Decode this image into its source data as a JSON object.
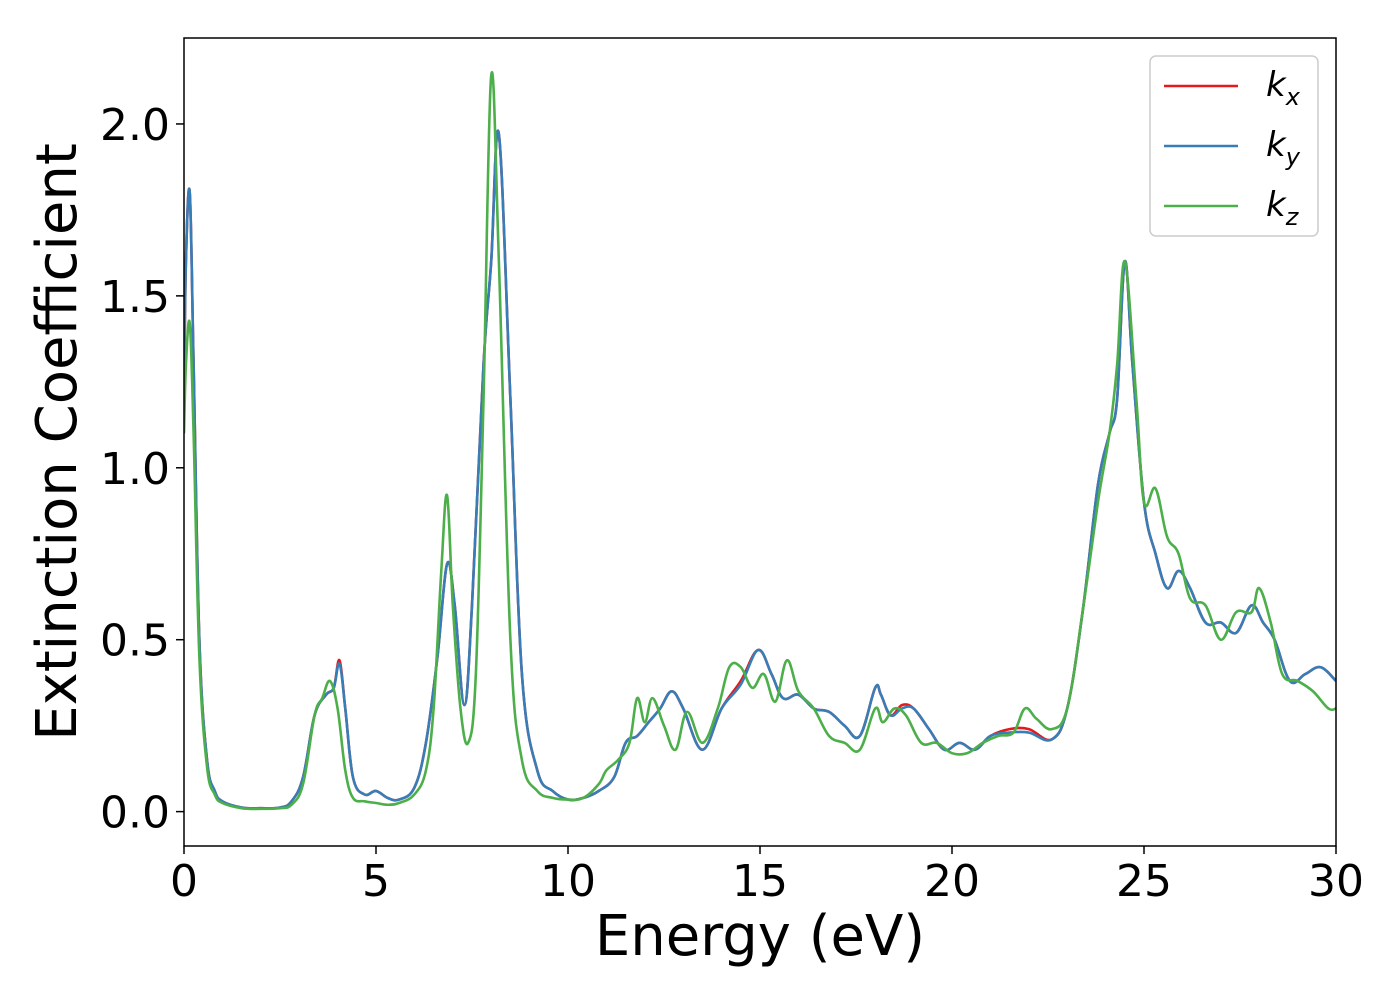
{
  "chart_data": {
    "type": "line",
    "title": "",
    "xlabel": "Energy (eV)",
    "ylabel": "Extinction Coefficient",
    "xlim": [
      0,
      30
    ],
    "ylim": [
      -0.1,
      2.25
    ],
    "xticks": [
      0,
      5,
      10,
      15,
      20,
      25,
      30
    ],
    "xtick_labels": [
      "0",
      "5",
      "10",
      "15",
      "20",
      "25",
      "30"
    ],
    "yticks": [
      0.0,
      0.5,
      1.0,
      1.5,
      2.0
    ],
    "ytick_labels": [
      "0.0",
      "0.5",
      "1.0",
      "1.5",
      "2.0"
    ],
    "grid": false,
    "legend_position": "top-right",
    "series": [
      {
        "name": "kx",
        "base": "k",
        "sub": "x",
        "color": "#e41a1c",
        "x": [
          0,
          0.05,
          0.15,
          0.25,
          0.4,
          0.6,
          0.8,
          1.0,
          1.5,
          2.0,
          2.5,
          2.8,
          3.1,
          3.4,
          3.7,
          3.9,
          4.05,
          4.2,
          4.4,
          4.7,
          5.0,
          5.3,
          5.6,
          6.0,
          6.3,
          6.6,
          6.85,
          7.05,
          7.3,
          7.5,
          7.8,
          8.0,
          8.2,
          8.5,
          8.8,
          9.2,
          9.6,
          10.0,
          10.4,
          10.8,
          11.2,
          11.5,
          11.8,
          12.1,
          12.4,
          12.7,
          13.0,
          13.5,
          14.0,
          14.5,
          14.95,
          15.3,
          15.6,
          16.0,
          16.4,
          16.8,
          17.2,
          17.6,
          18.0,
          18.15,
          18.4,
          18.7,
          19.0,
          19.4,
          19.8,
          20.2,
          20.6,
          21.0,
          21.5,
          22.0,
          22.6,
          23.0,
          23.4,
          23.8,
          24.1,
          24.3,
          24.5,
          24.7,
          25.0,
          25.3,
          25.6,
          25.9,
          26.2,
          26.6,
          27.0,
          27.4,
          27.8,
          28.1,
          28.4,
          28.8,
          29.2,
          29.6,
          30.0
        ],
        "y": [
          1.2,
          1.6,
          1.8,
          1.3,
          0.5,
          0.15,
          0.06,
          0.03,
          0.012,
          0.01,
          0.012,
          0.03,
          0.1,
          0.28,
          0.34,
          0.36,
          0.44,
          0.3,
          0.1,
          0.05,
          0.06,
          0.04,
          0.035,
          0.07,
          0.2,
          0.45,
          0.72,
          0.6,
          0.31,
          0.6,
          1.3,
          1.6,
          1.97,
          1.2,
          0.4,
          0.12,
          0.06,
          0.035,
          0.04,
          0.06,
          0.1,
          0.2,
          0.22,
          0.26,
          0.3,
          0.35,
          0.3,
          0.18,
          0.3,
          0.38,
          0.47,
          0.4,
          0.33,
          0.34,
          0.3,
          0.29,
          0.25,
          0.22,
          0.36,
          0.34,
          0.28,
          0.31,
          0.3,
          0.24,
          0.18,
          0.2,
          0.18,
          0.22,
          0.24,
          0.24,
          0.21,
          0.3,
          0.58,
          0.95,
          1.1,
          1.2,
          1.6,
          1.3,
          0.9,
          0.75,
          0.65,
          0.7,
          0.65,
          0.55,
          0.55,
          0.52,
          0.6,
          0.55,
          0.5,
          0.38,
          0.4,
          0.42,
          0.38
        ]
      },
      {
        "name": "ky",
        "base": "k",
        "sub": "y",
        "color": "#377eb8",
        "x": [
          0,
          0.05,
          0.15,
          0.25,
          0.4,
          0.6,
          0.8,
          1.0,
          1.5,
          2.0,
          2.5,
          2.8,
          3.1,
          3.4,
          3.7,
          3.9,
          4.05,
          4.2,
          4.4,
          4.7,
          5.0,
          5.3,
          5.6,
          6.0,
          6.3,
          6.6,
          6.85,
          7.05,
          7.3,
          7.5,
          7.8,
          8.0,
          8.2,
          8.5,
          8.8,
          9.2,
          9.6,
          10.0,
          10.4,
          10.8,
          11.2,
          11.5,
          11.8,
          12.1,
          12.4,
          12.7,
          13.0,
          13.5,
          14.0,
          14.5,
          14.95,
          15.3,
          15.6,
          16.0,
          16.4,
          16.8,
          17.2,
          17.6,
          18.0,
          18.15,
          18.4,
          18.7,
          19.0,
          19.4,
          19.8,
          20.2,
          20.6,
          21.0,
          21.5,
          22.0,
          22.6,
          23.0,
          23.4,
          23.8,
          24.1,
          24.3,
          24.5,
          24.7,
          25.0,
          25.3,
          25.6,
          25.9,
          26.2,
          26.6,
          27.0,
          27.4,
          27.8,
          28.1,
          28.4,
          28.8,
          29.2,
          29.6,
          30.0
        ],
        "y": [
          1.2,
          1.6,
          1.8,
          1.3,
          0.5,
          0.15,
          0.06,
          0.03,
          0.012,
          0.01,
          0.012,
          0.03,
          0.1,
          0.28,
          0.34,
          0.36,
          0.43,
          0.3,
          0.1,
          0.05,
          0.06,
          0.04,
          0.035,
          0.07,
          0.2,
          0.45,
          0.72,
          0.6,
          0.31,
          0.6,
          1.3,
          1.6,
          1.97,
          1.2,
          0.4,
          0.12,
          0.06,
          0.035,
          0.04,
          0.06,
          0.1,
          0.2,
          0.22,
          0.26,
          0.3,
          0.35,
          0.3,
          0.18,
          0.3,
          0.37,
          0.47,
          0.4,
          0.33,
          0.34,
          0.3,
          0.29,
          0.25,
          0.22,
          0.36,
          0.34,
          0.28,
          0.3,
          0.3,
          0.24,
          0.18,
          0.2,
          0.18,
          0.22,
          0.23,
          0.23,
          0.21,
          0.3,
          0.58,
          0.95,
          1.1,
          1.2,
          1.6,
          1.3,
          0.9,
          0.75,
          0.65,
          0.7,
          0.65,
          0.55,
          0.55,
          0.52,
          0.6,
          0.55,
          0.5,
          0.38,
          0.4,
          0.42,
          0.38
        ]
      },
      {
        "name": "kz",
        "base": "k",
        "sub": "z",
        "color": "#4daf4a",
        "x": [
          0,
          0.05,
          0.15,
          0.25,
          0.4,
          0.6,
          0.8,
          1.0,
          1.5,
          2.0,
          2.5,
          2.8,
          3.1,
          3.4,
          3.6,
          3.8,
          4.0,
          4.2,
          4.4,
          4.7,
          5.0,
          5.3,
          5.6,
          6.0,
          6.3,
          6.5,
          6.7,
          6.85,
          7.0,
          7.2,
          7.4,
          7.6,
          7.8,
          8.0,
          8.2,
          8.5,
          8.8,
          9.2,
          9.6,
          10.0,
          10.4,
          10.8,
          11.0,
          11.3,
          11.6,
          11.8,
          12.0,
          12.2,
          12.5,
          12.8,
          13.1,
          13.5,
          13.9,
          14.2,
          14.5,
          14.8,
          15.1,
          15.4,
          15.7,
          16.0,
          16.4,
          16.8,
          17.2,
          17.6,
          18.0,
          18.2,
          18.5,
          18.8,
          19.2,
          19.6,
          20.0,
          20.4,
          20.8,
          21.2,
          21.6,
          21.9,
          22.2,
          22.6,
          23.0,
          23.4,
          23.8,
          24.1,
          24.3,
          24.5,
          24.8,
          25.0,
          25.3,
          25.6,
          25.9,
          26.2,
          26.6,
          27.0,
          27.4,
          27.8,
          28.0,
          28.3,
          28.6,
          29.0,
          29.4,
          29.8,
          30.0
        ],
        "y": [
          1.1,
          1.3,
          1.42,
          1.1,
          0.45,
          0.13,
          0.05,
          0.025,
          0.01,
          0.008,
          0.01,
          0.02,
          0.08,
          0.28,
          0.33,
          0.38,
          0.3,
          0.12,
          0.04,
          0.03,
          0.025,
          0.02,
          0.025,
          0.05,
          0.12,
          0.3,
          0.7,
          0.92,
          0.6,
          0.3,
          0.2,
          0.4,
          1.2,
          2.14,
          1.6,
          0.5,
          0.15,
          0.06,
          0.04,
          0.035,
          0.04,
          0.08,
          0.12,
          0.15,
          0.2,
          0.33,
          0.26,
          0.33,
          0.25,
          0.18,
          0.29,
          0.2,
          0.3,
          0.42,
          0.42,
          0.36,
          0.4,
          0.32,
          0.44,
          0.35,
          0.3,
          0.22,
          0.2,
          0.18,
          0.3,
          0.26,
          0.3,
          0.28,
          0.2,
          0.2,
          0.17,
          0.17,
          0.2,
          0.22,
          0.23,
          0.3,
          0.27,
          0.24,
          0.3,
          0.58,
          0.9,
          1.1,
          1.3,
          1.6,
          1.2,
          0.9,
          0.94,
          0.8,
          0.75,
          0.62,
          0.6,
          0.5,
          0.58,
          0.58,
          0.65,
          0.55,
          0.4,
          0.38,
          0.35,
          0.3,
          0.3
        ]
      }
    ]
  }
}
